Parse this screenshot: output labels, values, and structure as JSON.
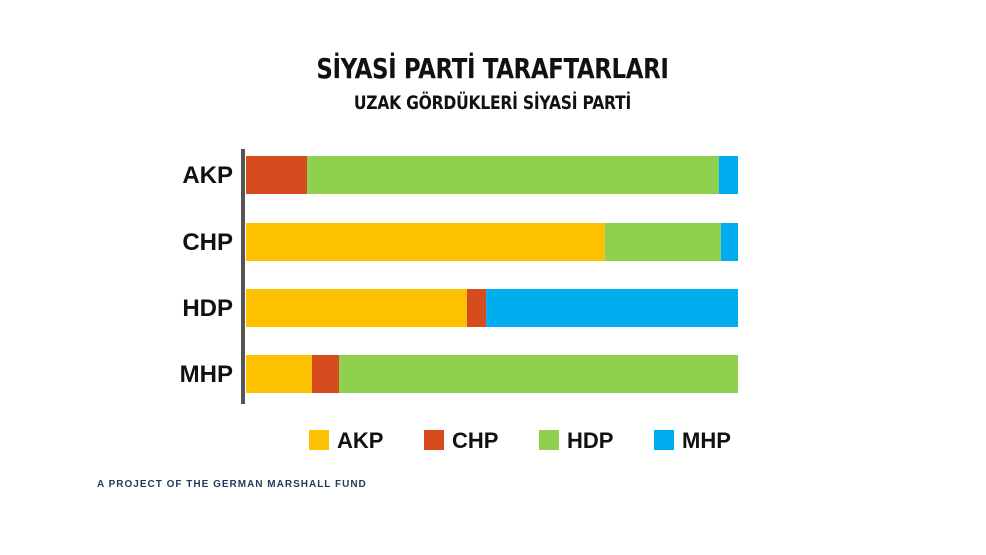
{
  "title": "SİYASİ PARTİ TARAFTARLARI",
  "subtitle": "UZAK GÖRDÜKLERİ SİYASİ PARTİ",
  "footer": "A PROJECT OF THE GERMAN MARSHALL FUND",
  "chart_data": {
    "type": "bar",
    "orientation": "horizontal",
    "stacked": true,
    "normalized": true,
    "title": "SİYASİ PARTİ TARAFTARLARI",
    "subtitle": "UZAK GÖRDÜKLERİ SİYASİ PARTİ",
    "categories": [
      "AKP",
      "CHP",
      "HDP",
      "MHP"
    ],
    "series": [
      {
        "name": "AKP",
        "color": "#FDC100",
        "values": [
          0.0,
          72.9,
          44.9,
          13.4
        ]
      },
      {
        "name": "CHP",
        "color": "#D64C1E",
        "values": [
          12.4,
          0.0,
          3.9,
          5.5
        ]
      },
      {
        "name": "HDP",
        "color": "#8FD14F",
        "values": [
          83.7,
          23.6,
          0.0,
          81.1
        ]
      },
      {
        "name": "MHP",
        "color": "#00ADEF",
        "values": [
          3.9,
          3.5,
          51.2,
          0.0
        ]
      }
    ],
    "xlim": [
      0,
      100
    ],
    "unit": "%",
    "grid": false,
    "legend": "bottom",
    "axis_tick_labels_x": false
  }
}
